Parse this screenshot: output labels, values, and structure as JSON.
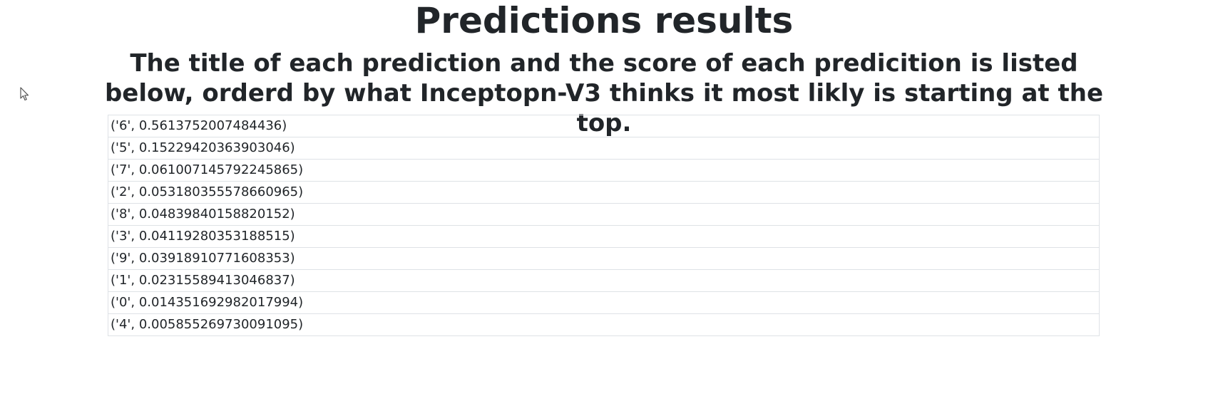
{
  "header": {
    "title": "Predictions results",
    "subtitle": "The title of each prediction and the score of each predicition is listed below, orderd by what Inceptopn-V3 thinks it most likly is starting at the top."
  },
  "cursor": {
    "icon": "mouse-pointer-icon"
  },
  "results": [
    "('6', 0.5613752007484436)",
    "('5', 0.15229420363903046)",
    "('7', 0.061007145792245865)",
    "('2', 0.053180355578660965)",
    "('8', 0.04839840158820152)",
    "('3', 0.04119280353188515)",
    "('9', 0.03918910771608353)",
    "('1', 0.02315589413046837)",
    "('0', 0.014351692982017994)",
    "('4', 0.005855269730091095)"
  ]
}
